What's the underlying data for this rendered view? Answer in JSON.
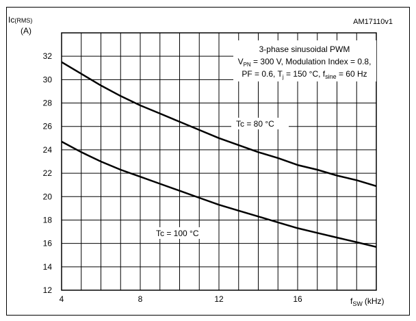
{
  "chart_data": {
    "type": "line",
    "figure_id": "AM17110v1",
    "y_axis": {
      "label_main": "Ic",
      "label_sub": "(RMS)",
      "unit": "(A)",
      "ylim": [
        12,
        34
      ],
      "ticks": [
        12,
        14,
        16,
        18,
        20,
        22,
        24,
        26,
        28,
        30,
        32
      ]
    },
    "x_axis": {
      "label_main": "f",
      "label_sub": "SW",
      "unit": "(kHz)",
      "xlim": [
        4,
        20
      ],
      "ticks": [
        4,
        8,
        12,
        16
      ],
      "minor_step": 1
    },
    "grid": true,
    "annotation": {
      "line1": "3-phase sinusoidal PWM",
      "line2": {
        "a": "V",
        "a_sub": "PN",
        "b": " = 300 V, Modulation Index = 0.8,"
      },
      "line3": {
        "a": "PF = 0.6, T",
        "a_sub": "j",
        "b": " = 150 °C, f",
        "b_sub": "sine",
        "c": " = 60 Hz"
      }
    },
    "series": [
      {
        "name": "Tc = 80 °C",
        "x": [
          4,
          5,
          6,
          7,
          8,
          9,
          10,
          11,
          12,
          13,
          14,
          15,
          16,
          17,
          18,
          19,
          20
        ],
        "y": [
          31.5,
          30.5,
          29.5,
          28.6,
          27.8,
          27.1,
          26.4,
          25.7,
          25.0,
          24.4,
          23.8,
          23.3,
          22.7,
          22.3,
          21.8,
          21.4,
          20.9
        ]
      },
      {
        "name": "Tc = 100 °C",
        "x": [
          4,
          5,
          6,
          7,
          8,
          9,
          10,
          11,
          12,
          13,
          14,
          15,
          16,
          17,
          18,
          19,
          20
        ],
        "y": [
          24.7,
          23.8,
          23.0,
          22.3,
          21.7,
          21.1,
          20.5,
          19.9,
          19.3,
          18.8,
          18.3,
          17.8,
          17.3,
          16.9,
          16.5,
          16.1,
          15.7
        ]
      }
    ]
  }
}
